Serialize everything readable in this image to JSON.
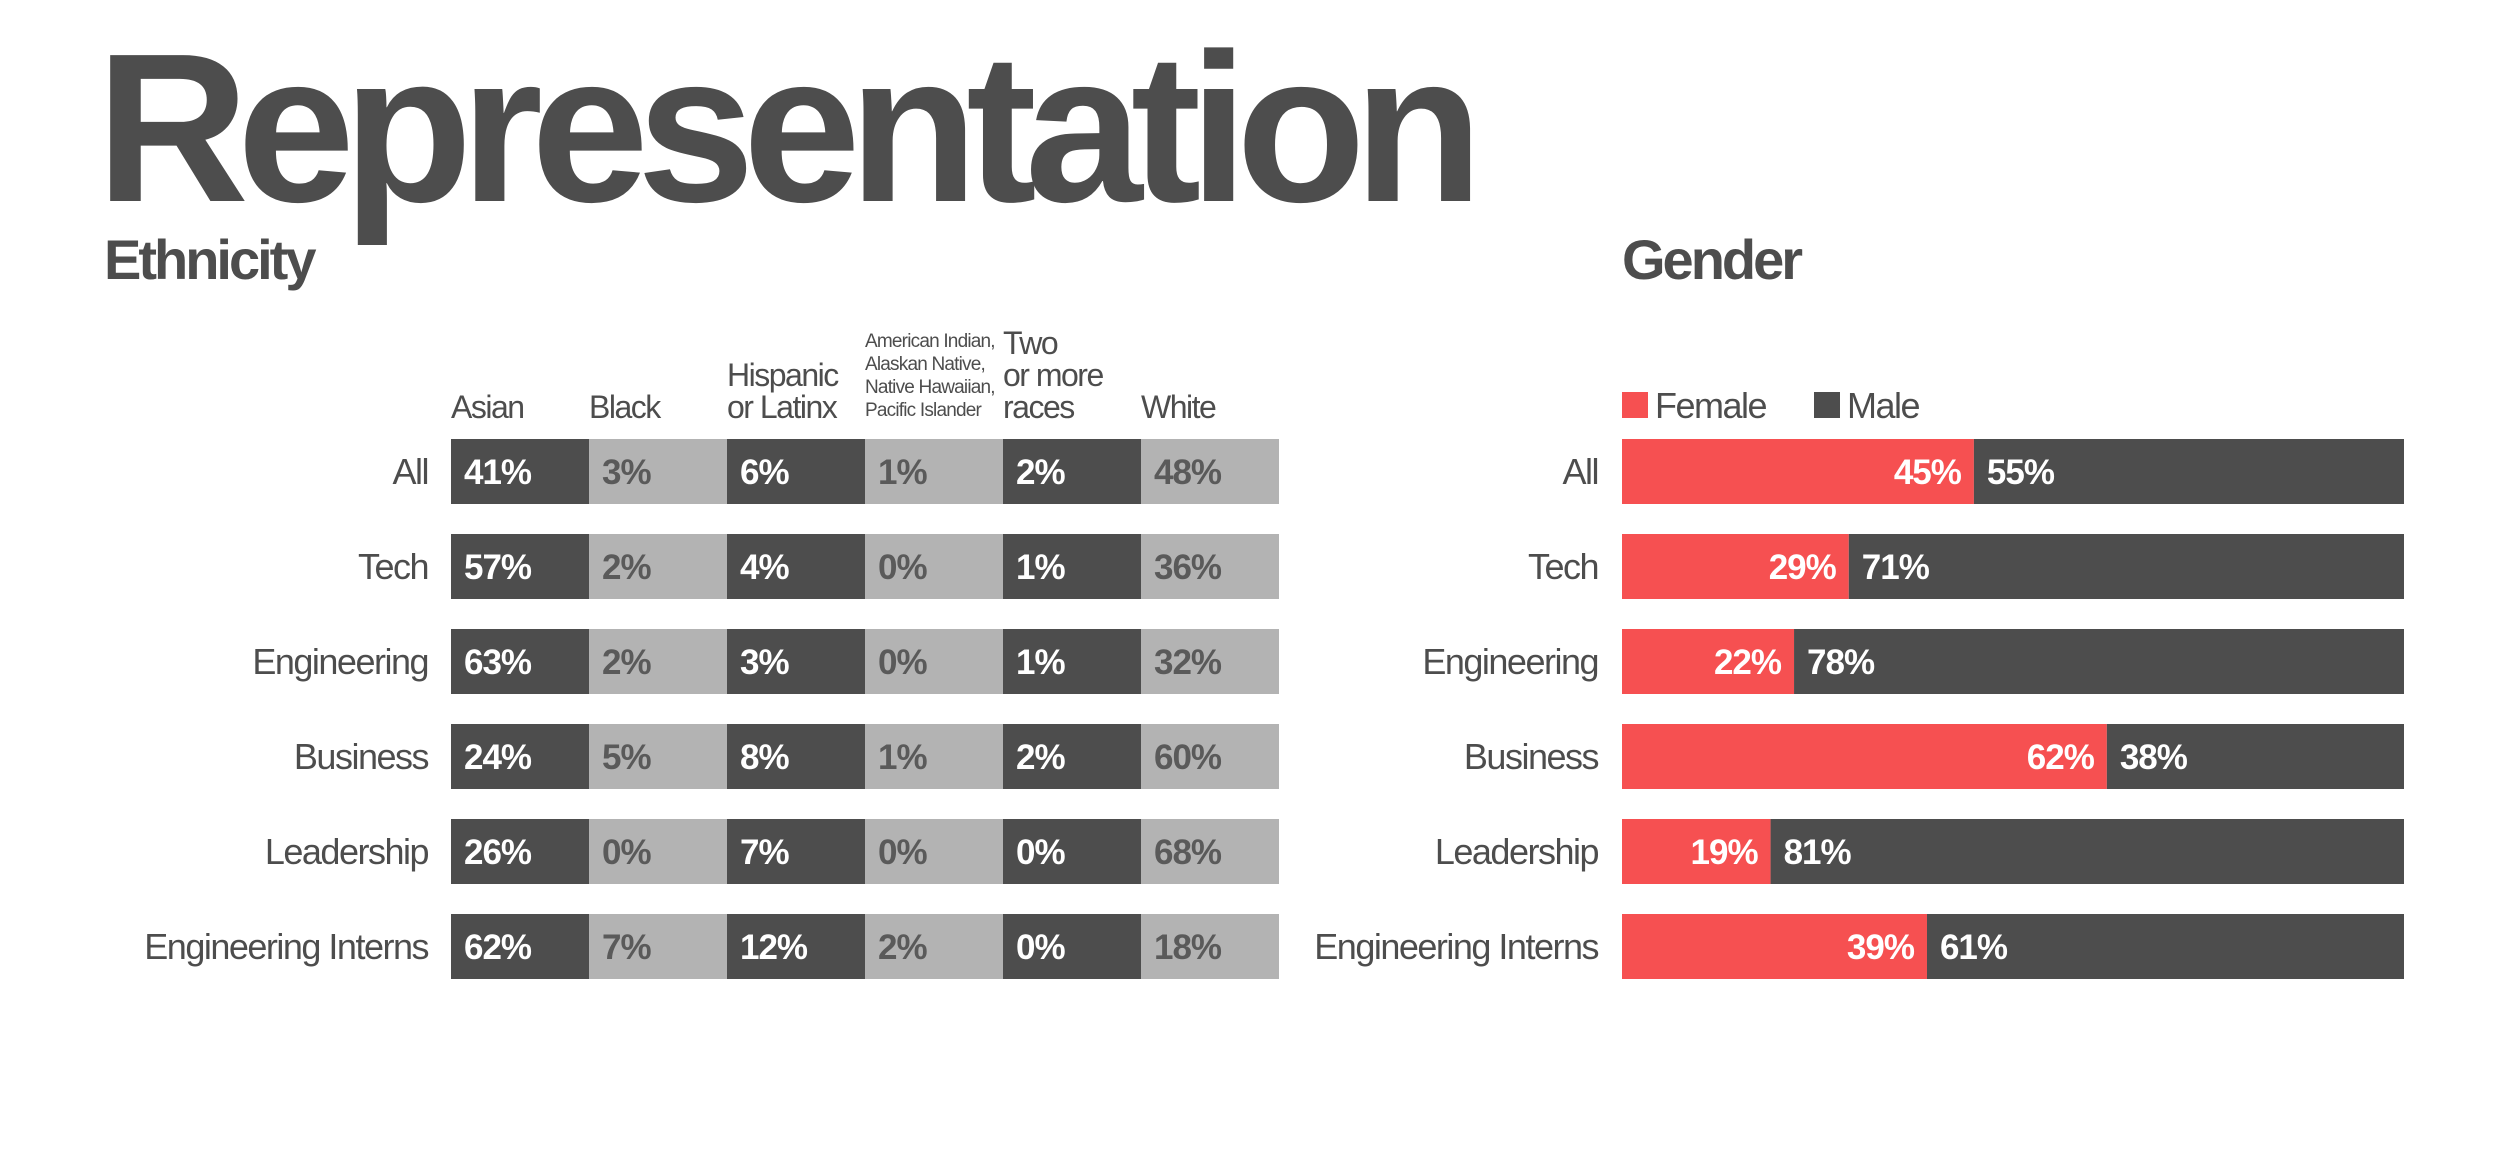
{
  "title": "Representation",
  "chart_data": [
    {
      "type": "table",
      "title": "Ethnicity",
      "columns": [
        [
          "Asian"
        ],
        [
          "Black"
        ],
        [
          "Hispanic",
          "or Latinx"
        ],
        [
          "American Indian,",
          "Alaskan Native,",
          "Native Hawaiian,",
          "Pacific Islander"
        ],
        [
          "Two",
          "or more",
          "races"
        ],
        [
          "White"
        ]
      ],
      "rows": [
        "All",
        "Tech",
        "Engineering",
        "Business",
        "Leadership",
        "Engineering Interns"
      ],
      "values": [
        [
          41,
          3,
          6,
          1,
          2,
          48
        ],
        [
          57,
          2,
          4,
          0,
          1,
          36
        ],
        [
          63,
          2,
          3,
          0,
          1,
          32
        ],
        [
          24,
          5,
          8,
          1,
          2,
          60
        ],
        [
          26,
          0,
          7,
          0,
          0,
          68
        ],
        [
          62,
          7,
          12,
          2,
          0,
          18
        ]
      ],
      "unit": "%",
      "colors": {
        "dark": "#4d4d4d",
        "light": "#b3b3b3",
        "text_on_dark": "#ffffff",
        "text_on_light": "#5a5a5a"
      }
    },
    {
      "type": "bar",
      "stacked": true,
      "title": "Gender",
      "categories": [
        "All",
        "Tech",
        "Engineering",
        "Business",
        "Leadership",
        "Engineering Interns"
      ],
      "series": [
        {
          "name": "Female",
          "values": [
            45,
            29,
            22,
            62,
            19,
            39
          ],
          "color": "#f65051"
        },
        {
          "name": "Male",
          "values": [
            55,
            71,
            78,
            38,
            81,
            61
          ],
          "color": "#4d4d4d"
        }
      ],
      "unit": "%",
      "xlim": [
        0,
        100
      ],
      "legend": "top-left"
    }
  ]
}
